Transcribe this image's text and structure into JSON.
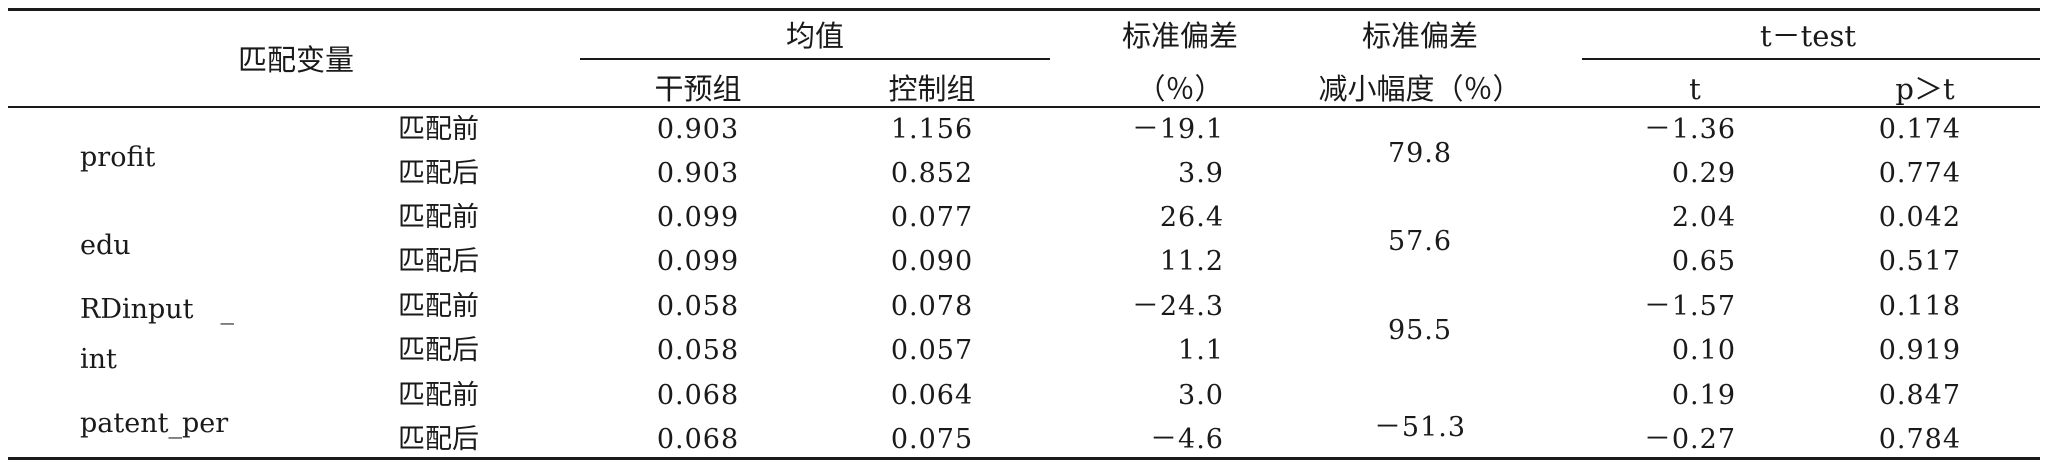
{
  "table": {
    "headers": {
      "match_var": "匹配变量",
      "mean": "均值",
      "treat": "干预组",
      "control": "控制组",
      "std_bias_1": "标准偏差",
      "std_bias_2": "（％）",
      "reduce_1": "标准偏差",
      "reduce_2": "减小幅度（％）",
      "ttest": "t－test",
      "t": "t",
      "p": "p＞t"
    },
    "rows": [
      {
        "var": "profit",
        "var_line2": "",
        "reduction": "79.8",
        "before": {
          "label": "匹配前",
          "treat": "0.903",
          "control": "1.156",
          "bias": "－19.1",
          "t": "－1.36",
          "p": "0.174"
        },
        "after": {
          "label": "匹配后",
          "treat": "0.903",
          "control": "0.852",
          "bias": "3.9",
          "t": "0.29",
          "p": "0.774"
        }
      },
      {
        "var": "edu",
        "var_line2": "",
        "reduction": "57.6",
        "before": {
          "label": "匹配前",
          "treat": "0.099",
          "control": "0.077",
          "bias": "26.4",
          "t": "2.04",
          "p": "0.042"
        },
        "after": {
          "label": "匹配后",
          "treat": "0.099",
          "control": "0.090",
          "bias": "11.2",
          "t": "0.65",
          "p": "0.517"
        }
      },
      {
        "var": "RDinput　_",
        "var_line2": "int",
        "reduction": "95.5",
        "before": {
          "label": "匹配前",
          "treat": "0.058",
          "control": "0.078",
          "bias": "－24.3",
          "t": "－1.57",
          "p": "0.118"
        },
        "after": {
          "label": "匹配后",
          "treat": "0.058",
          "control": "0.057",
          "bias": "1.1",
          "t": "0.10",
          "p": "0.919"
        }
      },
      {
        "var": "patent_per",
        "var_line2": "",
        "reduction": "－51.3",
        "before": {
          "label": "匹配前",
          "treat": "0.068",
          "control": "0.064",
          "bias": "3.0",
          "t": "0.19",
          "p": "0.847"
        },
        "after": {
          "label": "匹配后",
          "treat": "0.068",
          "control": "0.075",
          "bias": "－4.6",
          "t": "－0.27",
          "p": "0.784"
        }
      }
    ]
  }
}
